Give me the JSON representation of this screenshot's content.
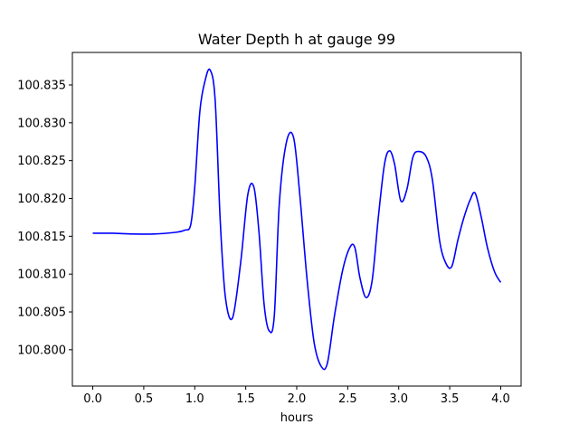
{
  "chart_data": {
    "type": "line",
    "title": "Water Depth h at gauge 99",
    "xlabel": "hours",
    "ylabel": "",
    "xlim": [
      -0.2,
      4.2
    ],
    "ylim": [
      100.7952,
      100.8393
    ],
    "xticks": [
      0.0,
      0.5,
      1.0,
      1.5,
      2.0,
      2.5,
      3.0,
      3.5,
      4.0
    ],
    "xtick_labels": [
      "0.0",
      "0.5",
      "1.0",
      "1.5",
      "2.0",
      "2.5",
      "3.0",
      "3.5",
      "4.0"
    ],
    "yticks": [
      100.8,
      100.805,
      100.81,
      100.815,
      100.82,
      100.825,
      100.83,
      100.835
    ],
    "ytick_labels": [
      "100.800",
      "100.805",
      "100.810",
      "100.815",
      "100.820",
      "100.825",
      "100.830",
      "100.835"
    ],
    "grid": false,
    "series": [
      {
        "color": "#0000ff",
        "x": [
          0.0,
          0.2,
          0.4,
          0.6,
          0.8,
          0.9,
          0.96,
          1.0,
          1.05,
          1.1,
          1.15,
          1.2,
          1.25,
          1.3,
          1.37,
          1.45,
          1.52,
          1.58,
          1.63,
          1.68,
          1.73,
          1.78,
          1.83,
          1.9,
          1.97,
          2.03,
          2.1,
          2.17,
          2.24,
          2.3,
          2.37,
          2.45,
          2.52,
          2.57,
          2.62,
          2.68,
          2.74,
          2.8,
          2.86,
          2.91,
          2.96,
          3.02,
          3.08,
          3.14,
          3.2,
          3.27,
          3.33,
          3.4,
          3.46,
          3.52,
          3.58,
          3.64,
          3.7,
          3.75,
          3.81,
          3.87,
          3.94,
          4.0
        ],
        "y": [
          100.8154,
          100.8154,
          100.8153,
          100.8153,
          100.8155,
          100.8158,
          100.8165,
          100.8215,
          100.8315,
          100.8355,
          100.837,
          100.833,
          100.817,
          100.807,
          100.8042,
          100.8115,
          100.8205,
          100.8215,
          100.8155,
          100.806,
          100.8025,
          100.8045,
          100.8195,
          100.8275,
          100.828,
          100.8205,
          100.8095,
          100.801,
          100.7978,
          100.7982,
          100.8045,
          100.8105,
          100.8135,
          100.8135,
          100.8095,
          100.8069,
          100.8092,
          100.8175,
          100.8245,
          100.8263,
          100.8245,
          100.8197,
          100.8212,
          100.8255,
          100.8262,
          100.8255,
          100.8225,
          100.8145,
          100.8115,
          100.811,
          100.8145,
          100.8175,
          100.8198,
          100.8207,
          100.8175,
          100.8135,
          100.8103,
          100.8089
        ]
      }
    ]
  }
}
